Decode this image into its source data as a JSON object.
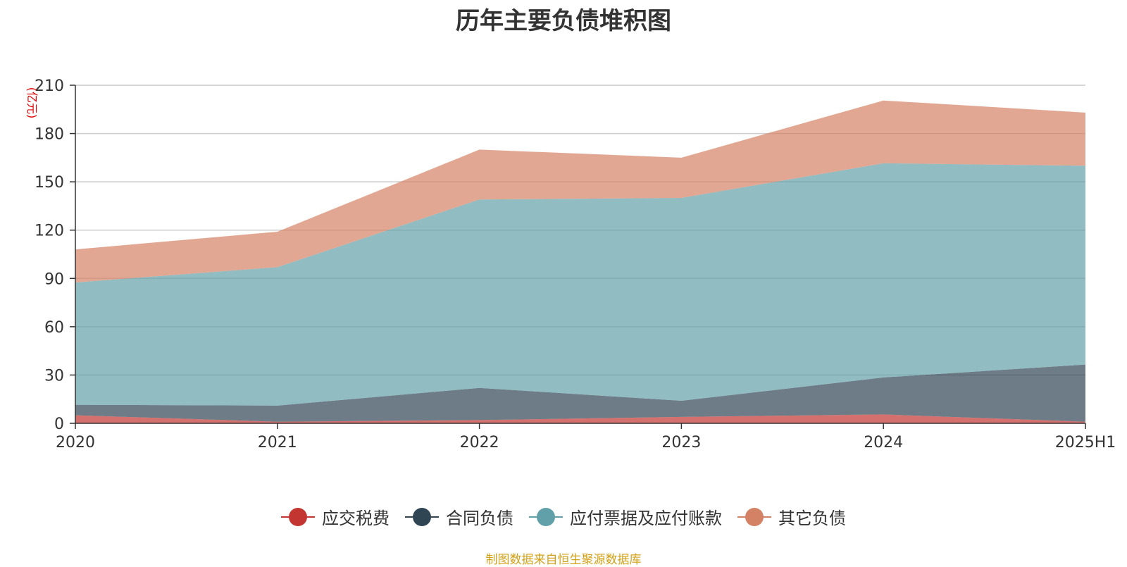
{
  "chart_data": {
    "type": "area",
    "stacked": true,
    "title": "历年主要负债堆积图",
    "unit_label": "(亿元)",
    "categories": [
      "2020",
      "2021",
      "2022",
      "2023",
      "2024",
      "2025H1"
    ],
    "ylim": [
      0,
      210
    ],
    "yticks": [
      0,
      30,
      60,
      90,
      120,
      150,
      180,
      210
    ],
    "grid": true,
    "legend_position": "bottom",
    "series": [
      {
        "name": "应交税费",
        "color": "#c23531",
        "values": [
          5,
          1,
          2,
          4,
          5.5,
          1
        ]
      },
      {
        "name": "合同负债",
        "color": "#2f4554",
        "values": [
          6.5,
          10,
          20,
          10,
          23,
          35.5
        ]
      },
      {
        "name": "应付票据及应付账款",
        "color": "#61a0a8",
        "values": [
          76,
          86,
          117,
          126,
          133,
          123.5
        ]
      },
      {
        "name": "其它负债",
        "color": "#d48265",
        "values": [
          20.5,
          22,
          31,
          25,
          39,
          33
        ]
      }
    ]
  },
  "source_note": "制图数据来自恒生聚源数据库"
}
